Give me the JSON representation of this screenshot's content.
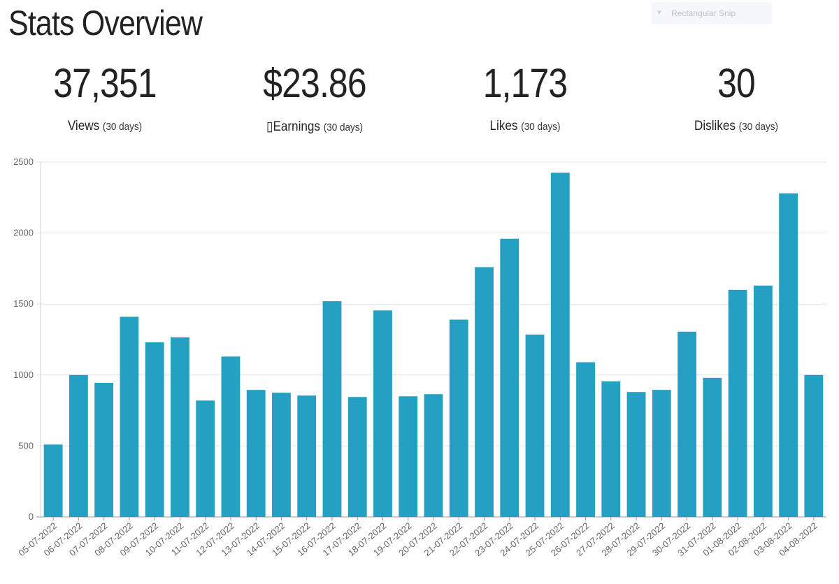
{
  "title": "Stats Overview",
  "snip_overlay": {
    "label": "Rectangular Snip",
    "icon": "snip-icon"
  },
  "stats": [
    {
      "value": "37,351",
      "label": "Views",
      "period": "(30 days)"
    },
    {
      "value": "$23.86",
      "label": "Earnings",
      "prefix": "▯",
      "period": "(30 days)"
    },
    {
      "value": "1,173",
      "label": "Likes",
      "period": "(30 days)"
    },
    {
      "value": "30",
      "label": "Dislikes",
      "period": "(30 days)"
    }
  ],
  "chart_data": {
    "type": "bar",
    "title": "",
    "xlabel": "",
    "ylabel": "",
    "ylim": [
      0,
      2500
    ],
    "yticks": [
      0,
      500,
      1000,
      1500,
      2000,
      2500
    ],
    "grid": true,
    "bar_color": "#24a0c2",
    "categories": [
      "05-07-2022",
      "06-07-2022",
      "07-07-2022",
      "08-07-2022",
      "09-07-2022",
      "10-07-2022",
      "11-07-2022",
      "12-07-2022",
      "13-07-2022",
      "14-07-2022",
      "15-07-2022",
      "16-07-2022",
      "17-07-2022",
      "18-07-2022",
      "19-07-2022",
      "20-07-2022",
      "21-07-2022",
      "22-07-2022",
      "23-07-2022",
      "24-07-2022",
      "25-07-2022",
      "26-07-2022",
      "27-07-2022",
      "28-07-2022",
      "29-07-2022",
      "30-07-2022",
      "31-07-2022",
      "01-08-2022",
      "02-08-2022",
      "03-08-2022",
      "04-08-2022"
    ],
    "values": [
      510,
      1000,
      945,
      1410,
      1230,
      1265,
      820,
      1130,
      895,
      875,
      855,
      1520,
      845,
      1455,
      850,
      865,
      1390,
      1760,
      1960,
      1285,
      2425,
      1090,
      955,
      880,
      895,
      1305,
      980,
      1600,
      1630,
      2280,
      1000
    ]
  }
}
